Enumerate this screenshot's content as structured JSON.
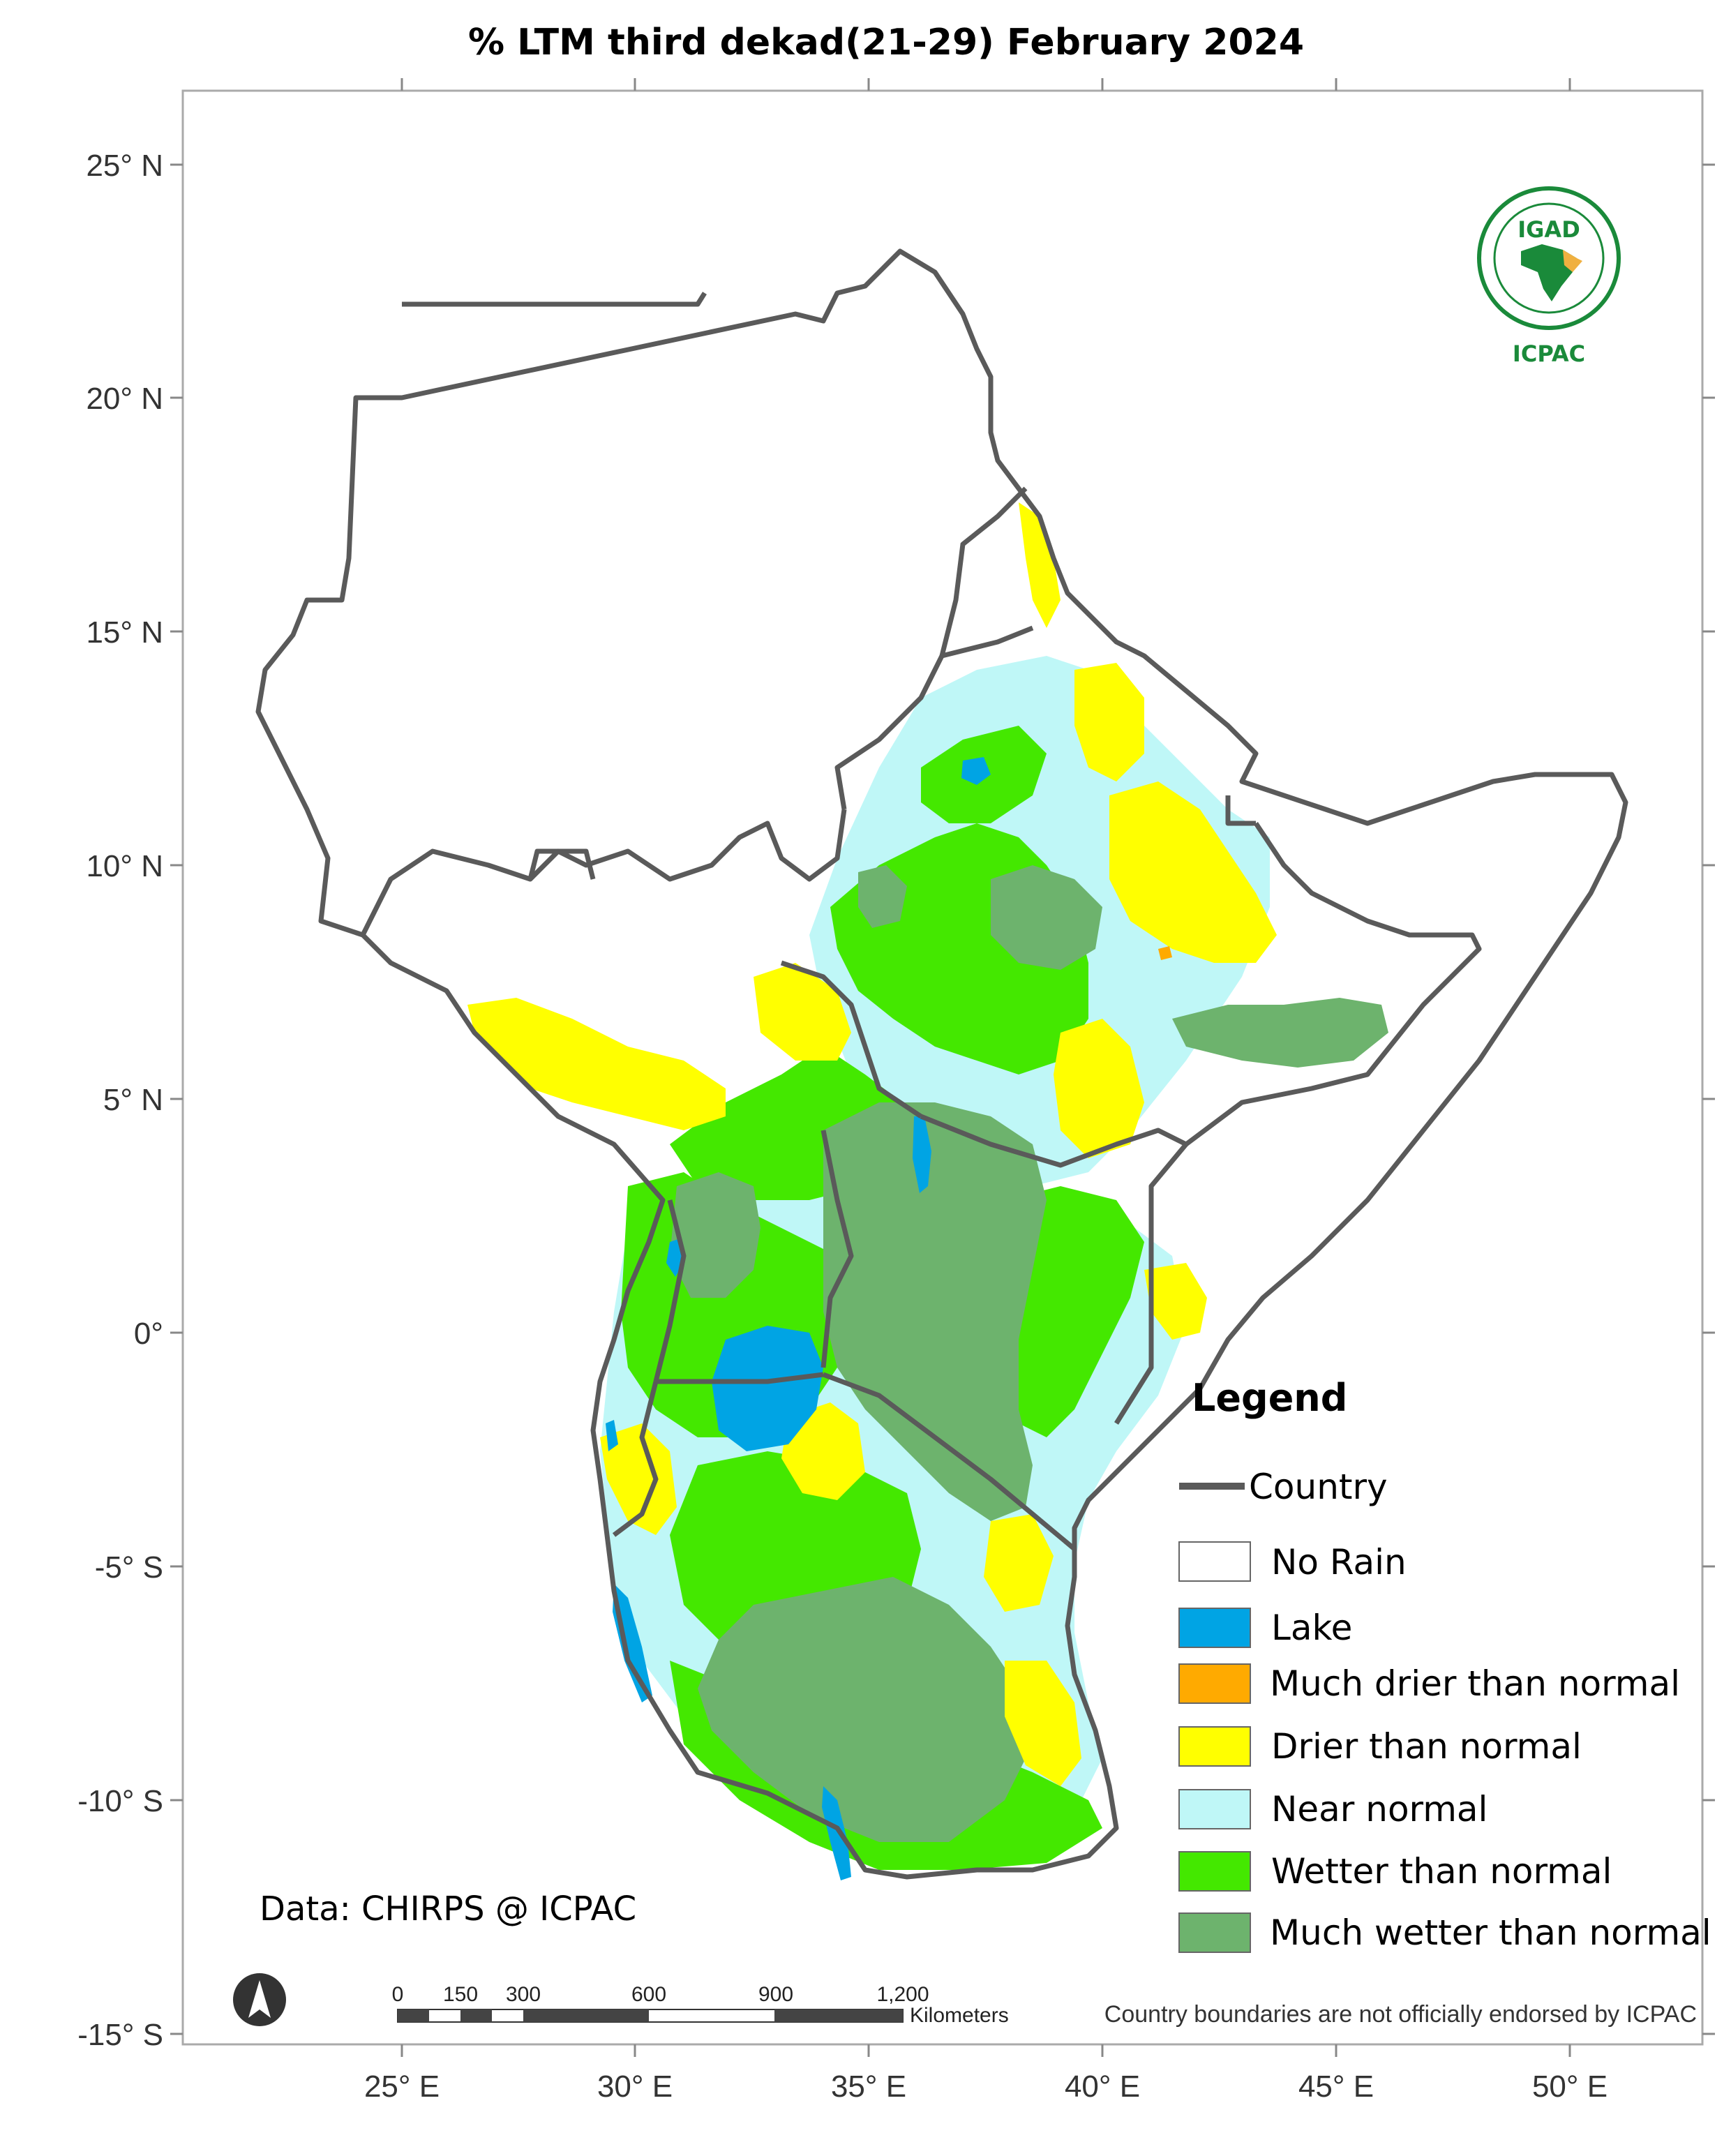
{
  "title": "% LTM  third dekad(21-29)  February 2024",
  "axes": {
    "lat_labels": [
      "25° N",
      "20° N",
      "15° N",
      "10° N",
      "5° N",
      "0°",
      "-5° S",
      "-10° S",
      "-15° S"
    ],
    "lon_labels": [
      "25° E",
      "30° E",
      "35° E",
      "40° E",
      "45° E",
      "50° E"
    ]
  },
  "legend": {
    "title": "Legend",
    "country_label": "Country",
    "items": [
      {
        "label": "No Rain",
        "color": "#ffffff"
      },
      {
        "label": "Lake",
        "color": "#00a4e4"
      },
      {
        "label": "Much drier than normal",
        "color": "#ffaa00"
      },
      {
        "label": "Drier than normal",
        "color": "#ffff00"
      },
      {
        "label": "Near normal",
        "color": "#bff7f7"
      },
      {
        "label": "Wetter than normal",
        "color": "#44e800"
      },
      {
        "label": "Much wetter than normal",
        "color": "#6db36d"
      }
    ],
    "country_color": "#5a5a5a"
  },
  "credit": "Data: CHIRPS @ ICPAC",
  "disclaimer": "Country boundaries are not officially endorsed by ICPAC",
  "scalebar": {
    "labels": [
      "0",
      "150",
      "300",
      "600",
      "900",
      "1,200"
    ],
    "unit": "Kilometers"
  },
  "logo": {
    "top_text": "IGAD",
    "bottom_text": "ICPAC"
  }
}
